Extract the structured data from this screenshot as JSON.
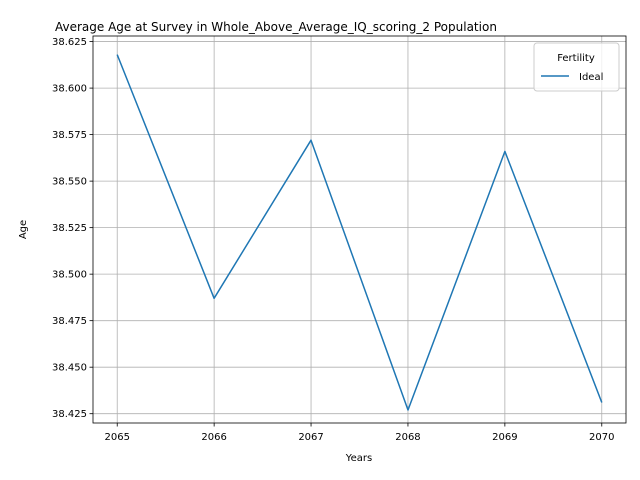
{
  "chart_data": {
    "type": "line",
    "title": "Average Age at Survey in Whole_Above_Average_IQ_scoring_2 Population",
    "xlabel": "Years",
    "ylabel": "Age",
    "x": [
      2065,
      2066,
      2067,
      2068,
      2069,
      2070
    ],
    "xticks": [
      "2065",
      "2066",
      "2067",
      "2068",
      "2069",
      "2070"
    ],
    "yticks": [
      "38.425",
      "38.450",
      "38.475",
      "38.500",
      "38.525",
      "38.550",
      "38.575",
      "38.600",
      "38.625"
    ],
    "ylim": [
      38.42,
      38.628
    ],
    "xlim": [
      2064.75,
      2070.25
    ],
    "grid": true,
    "legend": {
      "title": "Fertility",
      "placement": "top-right"
    },
    "series": [
      {
        "name": "Ideal",
        "color": "#1f77b4",
        "values": [
          38.618,
          38.487,
          38.572,
          38.427,
          38.566,
          38.431
        ]
      }
    ]
  }
}
